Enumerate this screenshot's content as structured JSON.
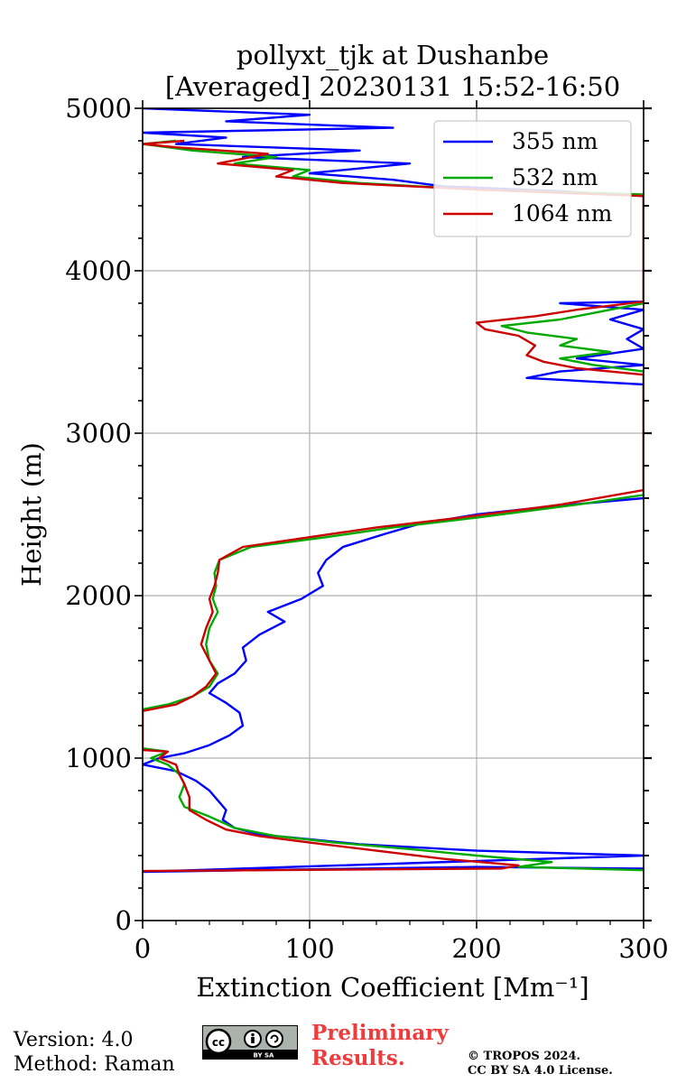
{
  "chart_data": {
    "type": "line",
    "title": "pollyxt_tjk at Dushanbe",
    "subtitle": "[Averaged] 20230131 15:52-16:50",
    "xlabel": "Extinction Coefficient [Mm⁻¹]",
    "ylabel": "Height (m)",
    "xlim": [
      0,
      300
    ],
    "ylim": [
      0,
      5000
    ],
    "xticks": [
      0,
      100,
      200,
      300
    ],
    "yticks": [
      0,
      1000,
      2000,
      3000,
      4000,
      5000
    ],
    "grid": true,
    "legend_position": "top-right",
    "series": [
      {
        "name": "355 nm",
        "color": "#0000ff",
        "points": [
          [
            300,
            320
          ],
          [
            200,
            330
          ],
          [
            0,
            300
          ],
          [
            300,
            400
          ],
          [
            200,
            430
          ],
          [
            130,
            470
          ],
          [
            100,
            500
          ],
          [
            70,
            530
          ],
          [
            55,
            570
          ],
          [
            48,
            620
          ],
          [
            50,
            680
          ],
          [
            45,
            740
          ],
          [
            40,
            800
          ],
          [
            32,
            860
          ],
          [
            20,
            920
          ],
          [
            0,
            960
          ],
          [
            10,
            1000
          ],
          [
            25,
            1030
          ],
          [
            40,
            1080
          ],
          [
            52,
            1140
          ],
          [
            60,
            1200
          ],
          [
            58,
            1280
          ],
          [
            50,
            1340
          ],
          [
            40,
            1400
          ],
          [
            45,
            1460
          ],
          [
            55,
            1520
          ],
          [
            62,
            1600
          ],
          [
            60,
            1680
          ],
          [
            70,
            1760
          ],
          [
            85,
            1840
          ],
          [
            75,
            1900
          ],
          [
            95,
            1980
          ],
          [
            108,
            2060
          ],
          [
            105,
            2140
          ],
          [
            110,
            2220
          ],
          [
            120,
            2300
          ],
          [
            145,
            2380
          ],
          [
            165,
            2440
          ],
          [
            200,
            2500
          ],
          [
            245,
            2550
          ],
          [
            300,
            2600
          ],
          [
            300,
            3300
          ],
          [
            230,
            3340
          ],
          [
            250,
            3380
          ],
          [
            300,
            3420
          ],
          [
            260,
            3460
          ],
          [
            300,
            3520
          ],
          [
            290,
            3580
          ],
          [
            300,
            3640
          ],
          [
            280,
            3700
          ],
          [
            300,
            3760
          ],
          [
            250,
            3800
          ],
          [
            300,
            3810
          ],
          [
            300,
            4460
          ],
          [
            250,
            4490
          ],
          [
            180,
            4520
          ],
          [
            150,
            4560
          ],
          [
            100,
            4600
          ],
          [
            160,
            4660
          ],
          [
            60,
            4700
          ],
          [
            130,
            4740
          ],
          [
            20,
            4780
          ],
          [
            50,
            4820
          ],
          [
            0,
            4850
          ],
          [
            150,
            4880
          ],
          [
            50,
            4920
          ],
          [
            100,
            4960
          ],
          [
            0,
            5000
          ]
        ]
      },
      {
        "name": "532 nm",
        "color": "#00aa00",
        "points": [
          [
            300,
            310
          ],
          [
            225,
            330
          ],
          [
            245,
            360
          ],
          [
            200,
            400
          ],
          [
            160,
            440
          ],
          [
            115,
            480
          ],
          [
            80,
            520
          ],
          [
            55,
            570
          ],
          [
            40,
            640
          ],
          [
            25,
            700
          ],
          [
            22,
            760
          ],
          [
            25,
            840
          ],
          [
            22,
            900
          ],
          [
            15,
            960
          ],
          [
            5,
            1000
          ],
          [
            15,
            1040
          ],
          [
            0,
            1060
          ],
          [
            0,
            1300
          ],
          [
            15,
            1330
          ],
          [
            30,
            1380
          ],
          [
            40,
            1440
          ],
          [
            45,
            1520
          ],
          [
            40,
            1600
          ],
          [
            38,
            1700
          ],
          [
            40,
            1800
          ],
          [
            45,
            1900
          ],
          [
            42,
            1980
          ],
          [
            44,
            2060
          ],
          [
            43,
            2140
          ],
          [
            46,
            2220
          ],
          [
            65,
            2300
          ],
          [
            110,
            2360
          ],
          [
            150,
            2420
          ],
          [
            200,
            2480
          ],
          [
            260,
            2560
          ],
          [
            300,
            2620
          ],
          [
            300,
            3380
          ],
          [
            270,
            3420
          ],
          [
            250,
            3460
          ],
          [
            280,
            3500
          ],
          [
            250,
            3540
          ],
          [
            260,
            3580
          ],
          [
            230,
            3620
          ],
          [
            215,
            3660
          ],
          [
            250,
            3700
          ],
          [
            280,
            3760
          ],
          [
            300,
            3800
          ],
          [
            300,
            4470
          ],
          [
            200,
            4500
          ],
          [
            130,
            4540
          ],
          [
            90,
            4580
          ],
          [
            100,
            4620
          ],
          [
            55,
            4660
          ],
          [
            80,
            4700
          ],
          [
            30,
            4740
          ],
          [
            0,
            4780
          ],
          [
            20,
            4800
          ]
        ]
      },
      {
        "name": "1064 nm",
        "color": "#cc0000",
        "points": [
          [
            0,
            305
          ],
          [
            215,
            320
          ],
          [
            225,
            340
          ],
          [
            180,
            380
          ],
          [
            140,
            430
          ],
          [
            100,
            480
          ],
          [
            70,
            520
          ],
          [
            50,
            560
          ],
          [
            38,
            620
          ],
          [
            28,
            680
          ],
          [
            28,
            760
          ],
          [
            25,
            840
          ],
          [
            22,
            900
          ],
          [
            20,
            960
          ],
          [
            10,
            1000
          ],
          [
            15,
            1040
          ],
          [
            0,
            1050
          ],
          [
            0,
            1290
          ],
          [
            20,
            1330
          ],
          [
            30,
            1380
          ],
          [
            38,
            1440
          ],
          [
            44,
            1520
          ],
          [
            40,
            1600
          ],
          [
            35,
            1700
          ],
          [
            38,
            1800
          ],
          [
            42,
            1900
          ],
          [
            40,
            1980
          ],
          [
            43,
            2060
          ],
          [
            45,
            2140
          ],
          [
            46,
            2220
          ],
          [
            60,
            2300
          ],
          [
            100,
            2360
          ],
          [
            140,
            2420
          ],
          [
            190,
            2480
          ],
          [
            250,
            2560
          ],
          [
            300,
            2650
          ],
          [
            300,
            3360
          ],
          [
            260,
            3400
          ],
          [
            240,
            3440
          ],
          [
            230,
            3480
          ],
          [
            235,
            3540
          ],
          [
            225,
            3600
          ],
          [
            205,
            3640
          ],
          [
            200,
            3680
          ],
          [
            235,
            3720
          ],
          [
            260,
            3760
          ],
          [
            300,
            3810
          ],
          [
            300,
            4460
          ],
          [
            200,
            4500
          ],
          [
            120,
            4540
          ],
          [
            80,
            4580
          ],
          [
            90,
            4620
          ],
          [
            45,
            4660
          ],
          [
            75,
            4720
          ],
          [
            20,
            4760
          ],
          [
            0,
            4780
          ],
          [
            25,
            4800
          ]
        ]
      }
    ]
  },
  "footer": {
    "version": "Version: 4.0",
    "method": "Method: Raman",
    "preliminary_line1": "Preliminary",
    "preliminary_line2": "Results.",
    "copyright_line1": "© TROPOS 2024.",
    "copyright_line2": "CC BY SA 4.0 License.",
    "license_badge_text": "BY SA"
  }
}
